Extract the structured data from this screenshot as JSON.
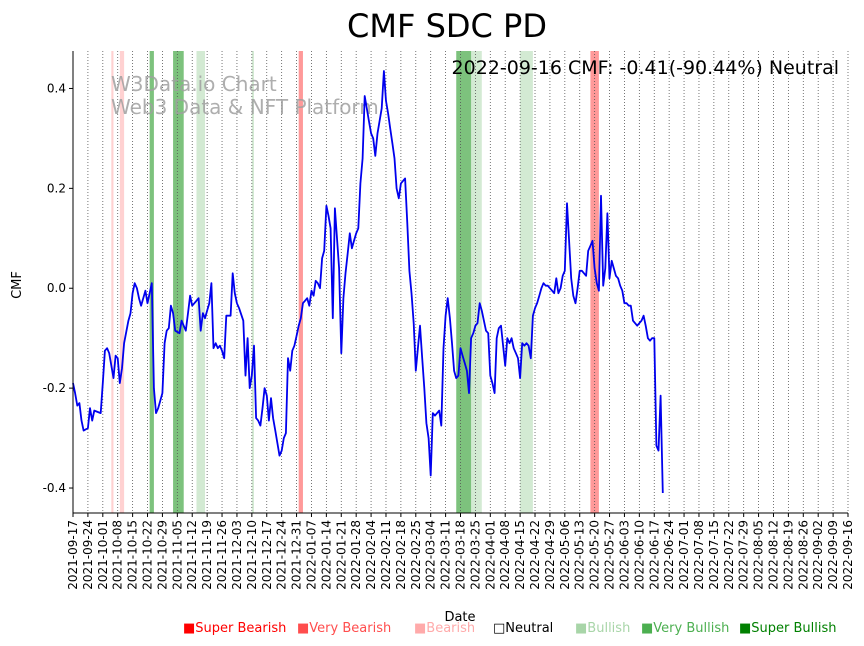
{
  "chart_data": {
    "type": "line",
    "title": "CMF SDC PD",
    "annotation": "2022-09-16 CMF: -0.41(-90.44%) Neutral",
    "watermark": [
      "W3Data.io Chart",
      "Web3 Data & NFT Platform"
    ],
    "xlabel": "Date",
    "ylabel": "CMF",
    "ylim": [
      -0.45,
      0.475
    ],
    "yticks": [
      -0.4,
      -0.2,
      0.0,
      0.2,
      0.4
    ],
    "ytick_labels": [
      "-0.4",
      "-0.2",
      "0.0",
      "0.2",
      "0.4"
    ],
    "x_start": "2021-09-17",
    "x_end": "2022-09-16",
    "xtick_labels": [
      "2021-09-17",
      "2021-09-24",
      "2021-10-01",
      "2021-10-08",
      "2021-10-15",
      "2021-10-22",
      "2021-10-29",
      "2021-11-05",
      "2021-11-12",
      "2021-11-19",
      "2021-11-26",
      "2021-12-03",
      "2021-12-10",
      "2021-12-17",
      "2021-12-24",
      "2021-12-31",
      "2022-01-07",
      "2022-01-14",
      "2022-01-21",
      "2022-01-28",
      "2022-02-04",
      "2022-02-11",
      "2022-02-18",
      "2022-02-25",
      "2022-03-04",
      "2022-03-11",
      "2022-03-18",
      "2022-03-25",
      "2022-04-01",
      "2022-04-08",
      "2022-04-15",
      "2022-04-22",
      "2022-04-29",
      "2022-05-06",
      "2022-05-13",
      "2022-05-20",
      "2022-05-27",
      "2022-06-03",
      "2022-06-10",
      "2022-06-17",
      "2022-06-24",
      "2022-07-01",
      "2022-07-08",
      "2022-07-15",
      "2022-07-22",
      "2022-07-29",
      "2022-08-05",
      "2022-08-12",
      "2022-08-19",
      "2022-08-26",
      "2022-09-02",
      "2022-09-09",
      "2022-09-16"
    ],
    "series": [
      {
        "name": "CMF",
        "color": "#0000ee",
        "points": [
          [
            0,
            -0.19
          ],
          [
            1,
            -0.21
          ],
          [
            2,
            -0.235
          ],
          [
            3,
            -0.23
          ],
          [
            4,
            -0.265
          ],
          [
            5,
            -0.285
          ],
          [
            7,
            -0.28
          ],
          [
            8,
            -0.24
          ],
          [
            9,
            -0.265
          ],
          [
            10,
            -0.245
          ],
          [
            13,
            -0.25
          ],
          [
            14,
            -0.19
          ],
          [
            15,
            -0.125
          ],
          [
            16,
            -0.12
          ],
          [
            17,
            -0.13
          ],
          [
            19,
            -0.18
          ],
          [
            20,
            -0.135
          ],
          [
            21,
            -0.14
          ],
          [
            22,
            -0.19
          ],
          [
            23,
            -0.16
          ],
          [
            24,
            -0.11
          ],
          [
            26,
            -0.065
          ],
          [
            27,
            -0.05
          ],
          [
            28,
            -0.01
          ],
          [
            29,
            0.01
          ],
          [
            30,
            0.0
          ],
          [
            31,
            -0.02
          ],
          [
            32,
            -0.035
          ],
          [
            34,
            -0.005
          ],
          [
            35,
            -0.03
          ],
          [
            37,
            0.01
          ],
          [
            38,
            -0.2
          ],
          [
            39,
            -0.25
          ],
          [
            40,
            -0.24
          ],
          [
            42,
            -0.21
          ],
          [
            43,
            -0.11
          ],
          [
            44,
            -0.085
          ],
          [
            45,
            -0.08
          ],
          [
            46,
            -0.035
          ],
          [
            47,
            -0.05
          ],
          [
            48,
            -0.085
          ],
          [
            50,
            -0.09
          ],
          [
            51,
            -0.065
          ],
          [
            52,
            -0.075
          ],
          [
            53,
            -0.085
          ],
          [
            54,
            -0.05
          ],
          [
            55,
            -0.015
          ],
          [
            56,
            -0.035
          ],
          [
            57,
            -0.03
          ],
          [
            58,
            -0.025
          ],
          [
            59,
            -0.02
          ],
          [
            60,
            -0.085
          ],
          [
            61,
            -0.05
          ],
          [
            62,
            -0.06
          ],
          [
            63,
            -0.045
          ],
          [
            64,
            -0.03
          ],
          [
            65,
            0.01
          ],
          [
            66,
            -0.12
          ],
          [
            67,
            -0.11
          ],
          [
            68,
            -0.12
          ],
          [
            69,
            -0.115
          ],
          [
            70,
            -0.125
          ],
          [
            71,
            -0.14
          ],
          [
            72,
            -0.055
          ],
          [
            74,
            -0.055
          ],
          [
            75,
            0.03
          ],
          [
            76,
            -0.01
          ],
          [
            77,
            -0.03
          ],
          [
            78,
            -0.04
          ],
          [
            80,
            -0.065
          ],
          [
            81,
            -0.175
          ],
          [
            82,
            -0.1
          ],
          [
            83,
            -0.2
          ],
          [
            84,
            -0.175
          ],
          [
            85,
            -0.115
          ],
          [
            86,
            -0.26
          ],
          [
            87,
            -0.265
          ],
          [
            88,
            -0.275
          ],
          [
            89,
            -0.24
          ],
          [
            90,
            -0.2
          ],
          [
            91,
            -0.215
          ],
          [
            92,
            -0.265
          ],
          [
            93,
            -0.22
          ],
          [
            94,
            -0.26
          ],
          [
            95,
            -0.285
          ],
          [
            96,
            -0.31
          ],
          [
            97,
            -0.335
          ],
          [
            98,
            -0.325
          ],
          [
            99,
            -0.3
          ],
          [
            100,
            -0.29
          ],
          [
            101,
            -0.14
          ],
          [
            102,
            -0.165
          ],
          [
            103,
            -0.125
          ],
          [
            104,
            -0.115
          ],
          [
            105,
            -0.095
          ],
          [
            106,
            -0.075
          ],
          [
            107,
            -0.06
          ],
          [
            108,
            -0.03
          ],
          [
            109,
            -0.025
          ],
          [
            110,
            -0.02
          ],
          [
            111,
            -0.035
          ],
          [
            112,
            -0.005
          ],
          [
            113,
            -0.015
          ],
          [
            114,
            0.015
          ],
          [
            115,
            0.01
          ],
          [
            116,
            0.0
          ],
          [
            117,
            0.06
          ],
          [
            118,
            0.075
          ],
          [
            119,
            0.165
          ],
          [
            120,
            0.145
          ],
          [
            121,
            0.12
          ],
          [
            122,
            -0.06
          ],
          [
            123,
            0.16
          ],
          [
            124,
            0.1
          ],
          [
            125,
            0.04
          ],
          [
            126,
            -0.13
          ],
          [
            127,
            -0.02
          ],
          [
            128,
            0.03
          ],
          [
            129,
            0.07
          ],
          [
            130,
            0.11
          ],
          [
            131,
            0.08
          ],
          [
            132,
            0.095
          ],
          [
            133,
            0.11
          ],
          [
            134,
            0.12
          ],
          [
            135,
            0.21
          ],
          [
            136,
            0.26
          ],
          [
            137,
            0.385
          ],
          [
            138,
            0.36
          ],
          [
            139,
            0.335
          ],
          [
            140,
            0.31
          ],
          [
            141,
            0.3
          ],
          [
            142,
            0.265
          ],
          [
            143,
            0.31
          ],
          [
            144,
            0.335
          ],
          [
            145,
            0.36
          ],
          [
            146,
            0.435
          ],
          [
            147,
            0.375
          ],
          [
            148,
            0.35
          ],
          [
            149,
            0.32
          ],
          [
            150,
            0.29
          ],
          [
            151,
            0.26
          ],
          [
            152,
            0.2
          ],
          [
            153,
            0.18
          ],
          [
            154,
            0.21
          ],
          [
            155,
            0.215
          ],
          [
            156,
            0.22
          ],
          [
            157,
            0.13
          ],
          [
            158,
            0.035
          ],
          [
            159,
            -0.01
          ],
          [
            160,
            -0.07
          ],
          [
            161,
            -0.165
          ],
          [
            162,
            -0.12
          ],
          [
            163,
            -0.075
          ],
          [
            164,
            -0.14
          ],
          [
            165,
            -0.2
          ],
          [
            166,
            -0.27
          ],
          [
            167,
            -0.3
          ],
          [
            168,
            -0.375
          ],
          [
            169,
            -0.25
          ],
          [
            170,
            -0.255
          ],
          [
            171,
            -0.25
          ],
          [
            172,
            -0.245
          ],
          [
            173,
            -0.275
          ],
          [
            174,
            -0.12
          ],
          [
            175,
            -0.055
          ],
          [
            176,
            -0.02
          ],
          [
            177,
            -0.06
          ],
          [
            178,
            -0.11
          ],
          [
            179,
            -0.165
          ],
          [
            180,
            -0.18
          ],
          [
            181,
            -0.175
          ],
          [
            182,
            -0.12
          ],
          [
            183,
            -0.135
          ],
          [
            184,
            -0.15
          ],
          [
            185,
            -0.165
          ],
          [
            186,
            -0.21
          ],
          [
            187,
            -0.1
          ],
          [
            188,
            -0.09
          ],
          [
            189,
            -0.075
          ],
          [
            190,
            -0.07
          ],
          [
            191,
            -0.03
          ],
          [
            192,
            -0.045
          ],
          [
            193,
            -0.065
          ],
          [
            194,
            -0.085
          ],
          [
            195,
            -0.09
          ],
          [
            196,
            -0.175
          ],
          [
            197,
            -0.19
          ],
          [
            198,
            -0.21
          ],
          [
            199,
            -0.1
          ],
          [
            200,
            -0.08
          ],
          [
            201,
            -0.075
          ],
          [
            202,
            -0.115
          ],
          [
            203,
            -0.155
          ],
          [
            204,
            -0.1
          ],
          [
            205,
            -0.11
          ],
          [
            206,
            -0.1
          ],
          [
            207,
            -0.12
          ],
          [
            208,
            -0.13
          ],
          [
            209,
            -0.14
          ],
          [
            210,
            -0.18
          ],
          [
            211,
            -0.11
          ],
          [
            212,
            -0.115
          ],
          [
            213,
            -0.11
          ],
          [
            214,
            -0.115
          ],
          [
            215,
            -0.14
          ],
          [
            216,
            -0.055
          ],
          [
            217,
            -0.04
          ],
          [
            218,
            -0.03
          ],
          [
            219,
            -0.015
          ],
          [
            220,
            0.0
          ],
          [
            221,
            0.01
          ],
          [
            222,
            0.005
          ],
          [
            223,
            0.005
          ],
          [
            224,
            0.0
          ],
          [
            225,
            -0.005
          ],
          [
            226,
            -0.01
          ],
          [
            227,
            0.02
          ],
          [
            228,
            -0.01
          ],
          [
            229,
            0.0
          ],
          [
            230,
            0.025
          ],
          [
            231,
            0.035
          ],
          [
            232,
            0.17
          ],
          [
            233,
            0.095
          ],
          [
            234,
            0.02
          ],
          [
            235,
            -0.015
          ],
          [
            236,
            -0.03
          ],
          [
            237,
            0.0
          ],
          [
            238,
            0.035
          ],
          [
            239,
            0.035
          ],
          [
            240,
            0.03
          ],
          [
            241,
            0.025
          ],
          [
            242,
            0.075
          ],
          [
            243,
            0.085
          ],
          [
            244,
            0.095
          ],
          [
            245,
            0.04
          ],
          [
            246,
            0.01
          ],
          [
            247,
            -0.005
          ],
          [
            248,
            0.185
          ],
          [
            249,
            0.005
          ],
          [
            250,
            0.04
          ],
          [
            251,
            0.15
          ],
          [
            252,
            0.02
          ],
          [
            253,
            0.055
          ],
          [
            254,
            0.04
          ],
          [
            255,
            0.025
          ],
          [
            256,
            0.02
          ],
          [
            257,
            0.005
          ],
          [
            258,
            -0.005
          ],
          [
            259,
            -0.03
          ],
          [
            260,
            -0.03
          ],
          [
            261,
            -0.035
          ],
          [
            262,
            -0.035
          ],
          [
            263,
            -0.065
          ],
          [
            264,
            -0.07
          ],
          [
            265,
            -0.075
          ],
          [
            266,
            -0.07
          ],
          [
            267,
            -0.065
          ],
          [
            268,
            -0.055
          ],
          [
            269,
            -0.075
          ],
          [
            270,
            -0.1
          ],
          [
            271,
            -0.105
          ],
          [
            272,
            -0.1
          ],
          [
            273,
            -0.1
          ],
          [
            274,
            -0.315
          ],
          [
            275,
            -0.325
          ],
          [
            276,
            -0.215
          ],
          [
            277,
            -0.41
          ]
        ]
      }
    ],
    "bands": [
      {
        "start": 18,
        "end": 19,
        "level": "bearish"
      },
      {
        "start": 22,
        "end": 24,
        "level": "bearish"
      },
      {
        "start": 36,
        "end": 38,
        "level": "very-bullish"
      },
      {
        "start": 47,
        "end": 52,
        "level": "very-bullish"
      },
      {
        "start": 58,
        "end": 62,
        "level": "bullish"
      },
      {
        "start": 84,
        "end": 85,
        "level": "bullish"
      },
      {
        "start": 106,
        "end": 108,
        "level": "very-bearish"
      },
      {
        "start": 180,
        "end": 187,
        "level": "very-bullish"
      },
      {
        "start": 187,
        "end": 192,
        "level": "bullish"
      },
      {
        "start": 210,
        "end": 216,
        "level": "bullish"
      },
      {
        "start": 243,
        "end": 247,
        "level": "very-bearish"
      }
    ],
    "band_colors": {
      "bearish": "#ffb3b3",
      "very-bearish": "#ff8080",
      "bullish": "#a8d5a8",
      "very-bullish": "#5cb35c"
    },
    "band_opacity": {
      "bearish": 0.6,
      "very-bearish": 0.8,
      "bullish": 0.5,
      "very-bullish": 0.8
    },
    "legend": [
      {
        "label": "Super Bearish",
        "symbol": "■",
        "color": "#ff0000"
      },
      {
        "label": "Very Bearish",
        "symbol": "■",
        "color": "#ff4d4d"
      },
      {
        "label": "Bearish",
        "symbol": "■",
        "color": "#ffaaaa"
      },
      {
        "label": "Neutral",
        "symbol": "□",
        "color": "#000000"
      },
      {
        "label": "Bullish",
        "symbol": "■",
        "color": "#a8d5a8"
      },
      {
        "label": "Very Bullish",
        "symbol": "■",
        "color": "#4caf50"
      },
      {
        "label": "Super Bullish",
        "symbol": "■",
        "color": "#008000"
      }
    ],
    "legend_position": "bottom"
  }
}
